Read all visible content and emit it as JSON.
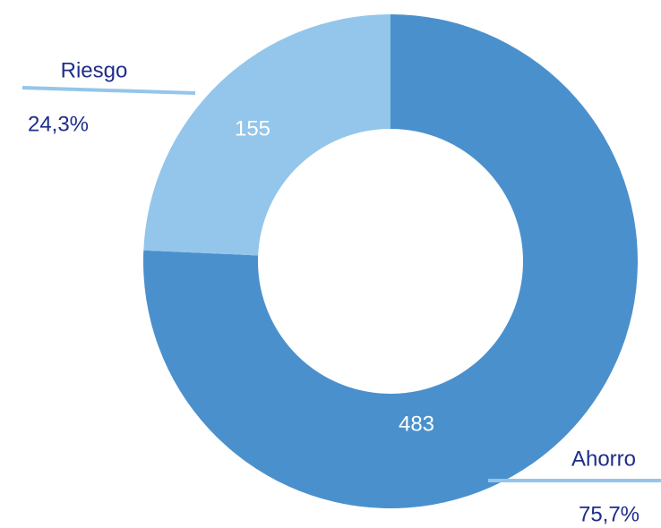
{
  "chart_data": {
    "type": "donut",
    "categories": [
      "Ahorro",
      "Riesgo"
    ],
    "values": [
      483,
      155
    ],
    "percentages": [
      75.7,
      24.3
    ],
    "percentage_labels": [
      "75,7%",
      "24,3%"
    ],
    "colors": [
      "#4a90cd",
      "#93c6ea"
    ]
  }
}
